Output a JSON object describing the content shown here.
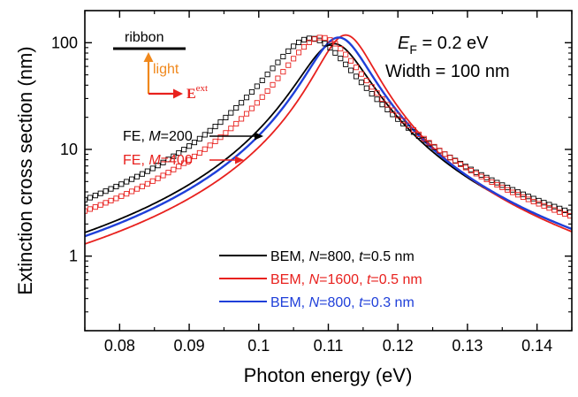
{
  "chart_data": {
    "type": "line",
    "title": "",
    "xlabel": "Photon energy (eV)",
    "ylabel": "Extinction cross section (nm)",
    "xlim": [
      0.075,
      0.145
    ],
    "ylim_log": [
      0.2,
      200
    ],
    "yscale": "log",
    "x_ticks": [
      0.08,
      0.09,
      0.1,
      0.11,
      0.12,
      0.13,
      0.14
    ],
    "x_tick_labels": [
      "0.08",
      "0.09",
      "0.1",
      "0.11",
      "0.12",
      "0.13",
      "0.14"
    ],
    "y_ticks": [
      1,
      10,
      100
    ],
    "y_tick_labels": [
      "1",
      "10",
      "100"
    ],
    "series": [
      {
        "name": "BEM, N=800, t=0.5 nm",
        "style": "line",
        "color": "#000000",
        "peak_x": 0.1108,
        "peak_y": 98,
        "fwhm": 0.0093,
        "baseline": 0.026
      },
      {
        "name": "BEM, N=1600, t=0.5 nm",
        "style": "line",
        "color": "#e8211e",
        "peak_x": 0.1125,
        "peak_y": 118,
        "fwhm": 0.0078,
        "baseline": 0.026
      },
      {
        "name": "BEM, N=800, t=0.3 nm",
        "style": "line",
        "color": "#1f3fd9",
        "peak_x": 0.1115,
        "peak_y": 112,
        "fwhm": 0.0085,
        "baseline": 0.026
      },
      {
        "name": "FE, M=200",
        "style": "marker-square",
        "color": "#000000",
        "peak_x": 0.1075,
        "peak_y": 110,
        "fwhm": 0.0115,
        "baseline": 0.026
      },
      {
        "name": "FE, M=400",
        "style": "marker-square",
        "color": "#e8211e",
        "peak_x": 0.109,
        "peak_y": 112,
        "fwhm": 0.0105,
        "baseline": 0.026
      }
    ],
    "legend": {
      "position": "bottom-right",
      "entries": [
        {
          "color": "#000000",
          "pre": "BEM, ",
          "var1": "N",
          "mid1": "=800,   ",
          "var2": "t",
          "post": "=0.5 nm"
        },
        {
          "color": "#e8211e",
          "pre": "BEM, ",
          "var1": "N",
          "mid1": "=1600, ",
          "var2": "t",
          "post": "=0.5 nm"
        },
        {
          "color": "#1f3fd9",
          "pre": "BEM, ",
          "var1": "N",
          "mid1": "=800,   ",
          "var2": "t",
          "post": "=0.3 nm"
        }
      ]
    },
    "annotations": {
      "fe_m200": {
        "pre": "FE, ",
        "var": "M",
        "post": "=200",
        "color": "#000000"
      },
      "fe_m400": {
        "pre": "FE, ",
        "var": "M",
        "post": "=400",
        "color": "#e8211e"
      },
      "ef_var": "E",
      "ef_sub": "F",
      "ef_value": " = 0.2 eV",
      "width_text": "Width = 100 nm",
      "inset_ribbon": "ribbon",
      "inset_light": "light",
      "inset_field": "E",
      "inset_field_sup": "ext"
    },
    "colors": {
      "black": "#000000",
      "red": "#e8211e",
      "blue": "#1f3fd9",
      "orange": "#f0881c"
    }
  }
}
